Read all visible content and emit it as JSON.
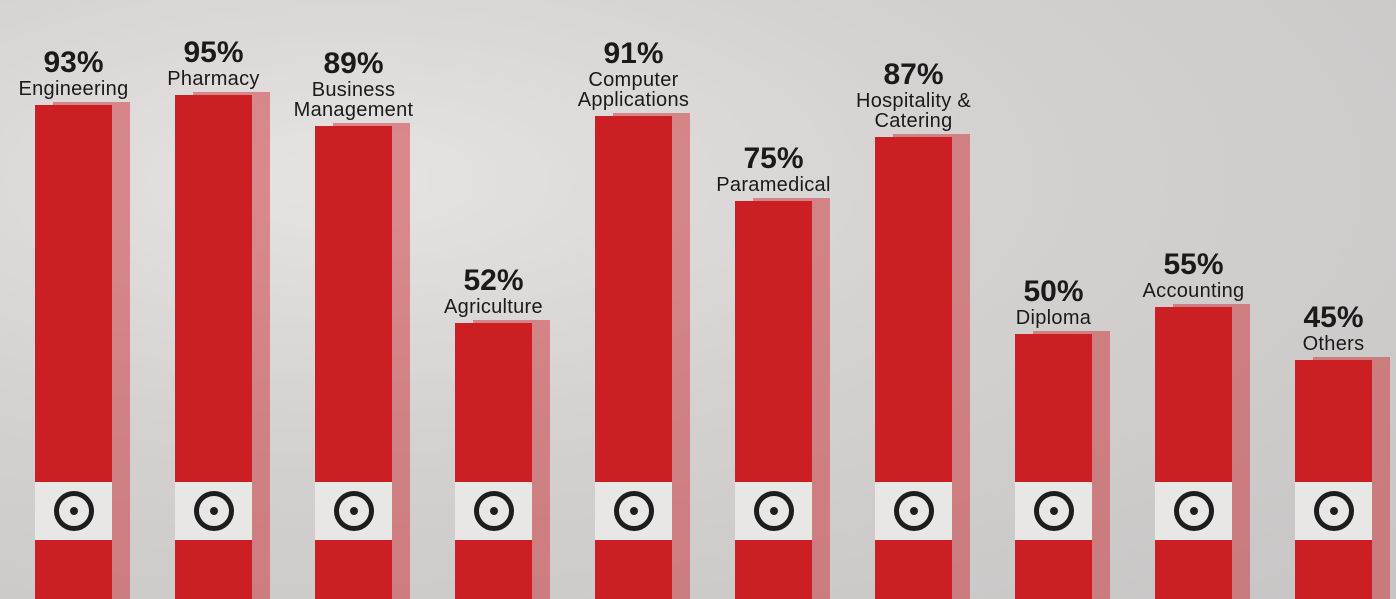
{
  "chart_data": {
    "type": "bar",
    "categories": [
      "Engineering",
      "Pharmacy",
      "Business Management",
      "Agriculture",
      "Computer Applications",
      "Paramedical",
      "Hospitality & Catering",
      "Diploma",
      "Accounting",
      "Others"
    ],
    "values": [
      93,
      95,
      89,
      52,
      91,
      75,
      87,
      50,
      55,
      45
    ],
    "value_labels": [
      "93%",
      "95%",
      "89%",
      "52%",
      "91%",
      "75%",
      "87%",
      "50%",
      "55%",
      "45%"
    ],
    "color": "#cc1f24"
  }
}
